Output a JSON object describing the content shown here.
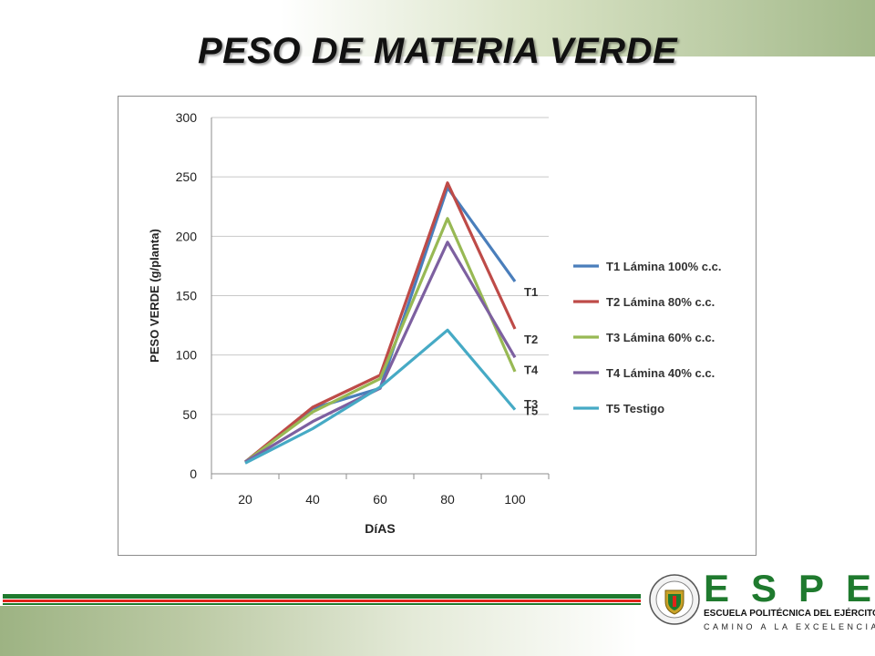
{
  "slide": {
    "title": "PESO DE MATERIA VERDE"
  },
  "colors": {
    "T1": "#4a7ebb",
    "T2": "#be4b48",
    "T3": "#98b954",
    "T4": "#7d60a0",
    "T5": "#46aac5",
    "brand_green": "#1f7a2e",
    "brand_red": "#e2231a"
  },
  "chart_data": {
    "type": "line",
    "title": "",
    "xlabel": "DíAS",
    "ylabel": "PESO VERDE (g/planta)",
    "x": [
      20,
      40,
      60,
      80,
      100
    ],
    "ylim": [
      0,
      300
    ],
    "yticks": [
      0,
      50,
      100,
      150,
      200,
      250,
      300
    ],
    "grid": true,
    "legend_position": "right",
    "series": [
      {
        "key": "T1",
        "name": "T1 Lámina 100% c.c.",
        "end_label": "T1",
        "values": [
          10,
          55,
          72,
          241,
          162
        ]
      },
      {
        "key": "T2",
        "name": "T2 Lámina 80% c.c.",
        "end_label": "T2",
        "values": [
          10,
          56,
          83,
          245,
          122
        ]
      },
      {
        "key": "T3",
        "name": "T3 Lámina 60% c.c.",
        "end_label": "T3",
        "values": [
          10,
          52,
          80,
          215,
          86
        ]
      },
      {
        "key": "T4",
        "name": "T4 Lámina 40% c.c.",
        "end_label": "T4",
        "values": [
          10,
          44,
          72,
          195,
          98
        ]
      },
      {
        "key": "T5",
        "name": "T5 Testigo",
        "end_label": "T5",
        "values": [
          9,
          38,
          73,
          121,
          54
        ]
      }
    ]
  },
  "logo": {
    "letters": "ESPE",
    "subtitle": "ESCUELA POLITÉCNICA DEL EJÉRCITO",
    "motto": "CAMINO A LA EXCELENCIA"
  }
}
